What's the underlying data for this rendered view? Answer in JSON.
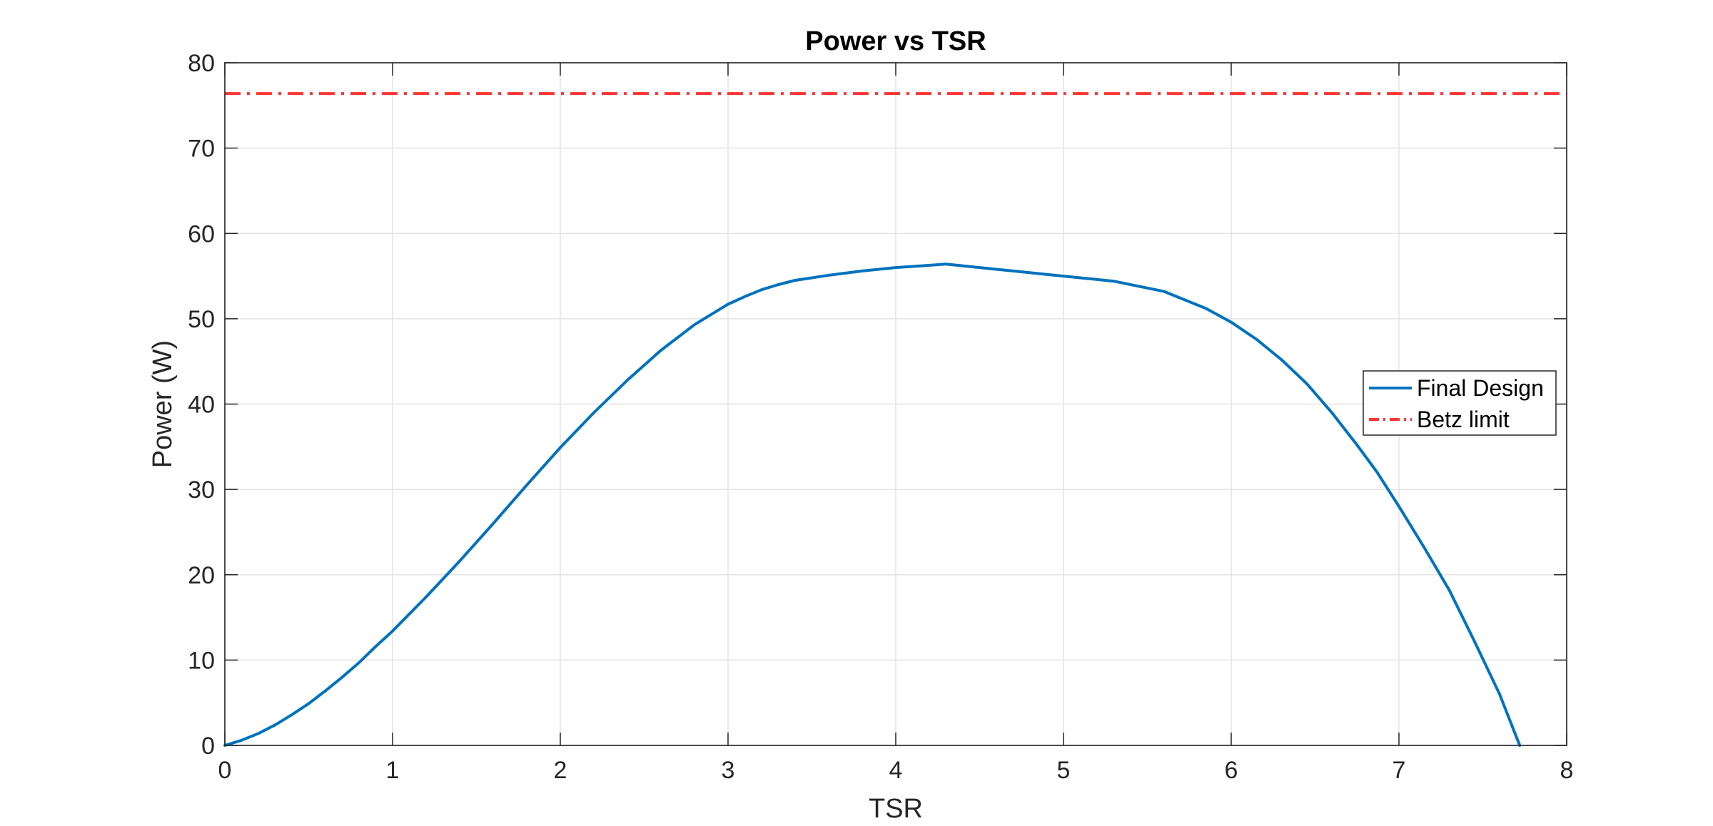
{
  "chart_data": {
    "type": "line",
    "title": "Power vs TSR",
    "xlabel": "TSR",
    "ylabel": "Power (W)",
    "xlim": [
      0,
      8
    ],
    "ylim": [
      0,
      80
    ],
    "xticks": [
      "0",
      "1",
      "2",
      "3",
      "4",
      "5",
      "6",
      "7",
      "8"
    ],
    "yticks": [
      "0",
      "10",
      "20",
      "30",
      "40",
      "50",
      "60",
      "70",
      "80"
    ],
    "grid": true,
    "legend_position": "right",
    "series": [
      {
        "name": "Final Design",
        "style": "solid",
        "color": "#0072BD",
        "x": [
          0,
          0.1,
          0.2,
          0.3,
          0.4,
          0.5,
          0.6,
          0.7,
          0.8,
          0.9,
          1.0,
          1.2,
          1.4,
          1.6,
          1.8,
          2.0,
          2.2,
          2.4,
          2.6,
          2.8,
          3.0,
          3.1,
          3.2,
          3.3,
          3.4,
          3.5,
          3.6,
          3.8,
          4.0,
          4.15,
          4.3,
          4.5,
          4.7,
          4.9,
          5.1,
          5.3,
          5.45,
          5.6,
          5.7,
          5.85,
          6.0,
          6.15,
          6.3,
          6.45,
          6.6,
          6.75,
          6.87,
          7.0,
          7.15,
          7.3,
          7.45,
          7.6,
          7.72
        ],
        "y": [
          0,
          0.6,
          1.4,
          2.4,
          3.6,
          4.9,
          6.4,
          8.0,
          9.7,
          11.6,
          13.4,
          17.4,
          21.6,
          26.0,
          30.5,
          34.9,
          39.0,
          42.8,
          46.3,
          49.3,
          51.7,
          52.6,
          53.4,
          54.0,
          54.5,
          54.8,
          55.1,
          55.6,
          56.0,
          56.2,
          56.4,
          56.0,
          55.6,
          55.2,
          54.8,
          54.4,
          53.8,
          53.2,
          52.4,
          51.2,
          49.6,
          47.6,
          45.2,
          42.4,
          39.0,
          35.2,
          32.0,
          28.0,
          23.2,
          18.2,
          12.2,
          6.0,
          0
        ]
      },
      {
        "name": "Betz limit",
        "style": "dashdot",
        "color": "#FF3333",
        "x": [
          0,
          8
        ],
        "y": [
          76.4,
          76.4
        ]
      }
    ]
  }
}
